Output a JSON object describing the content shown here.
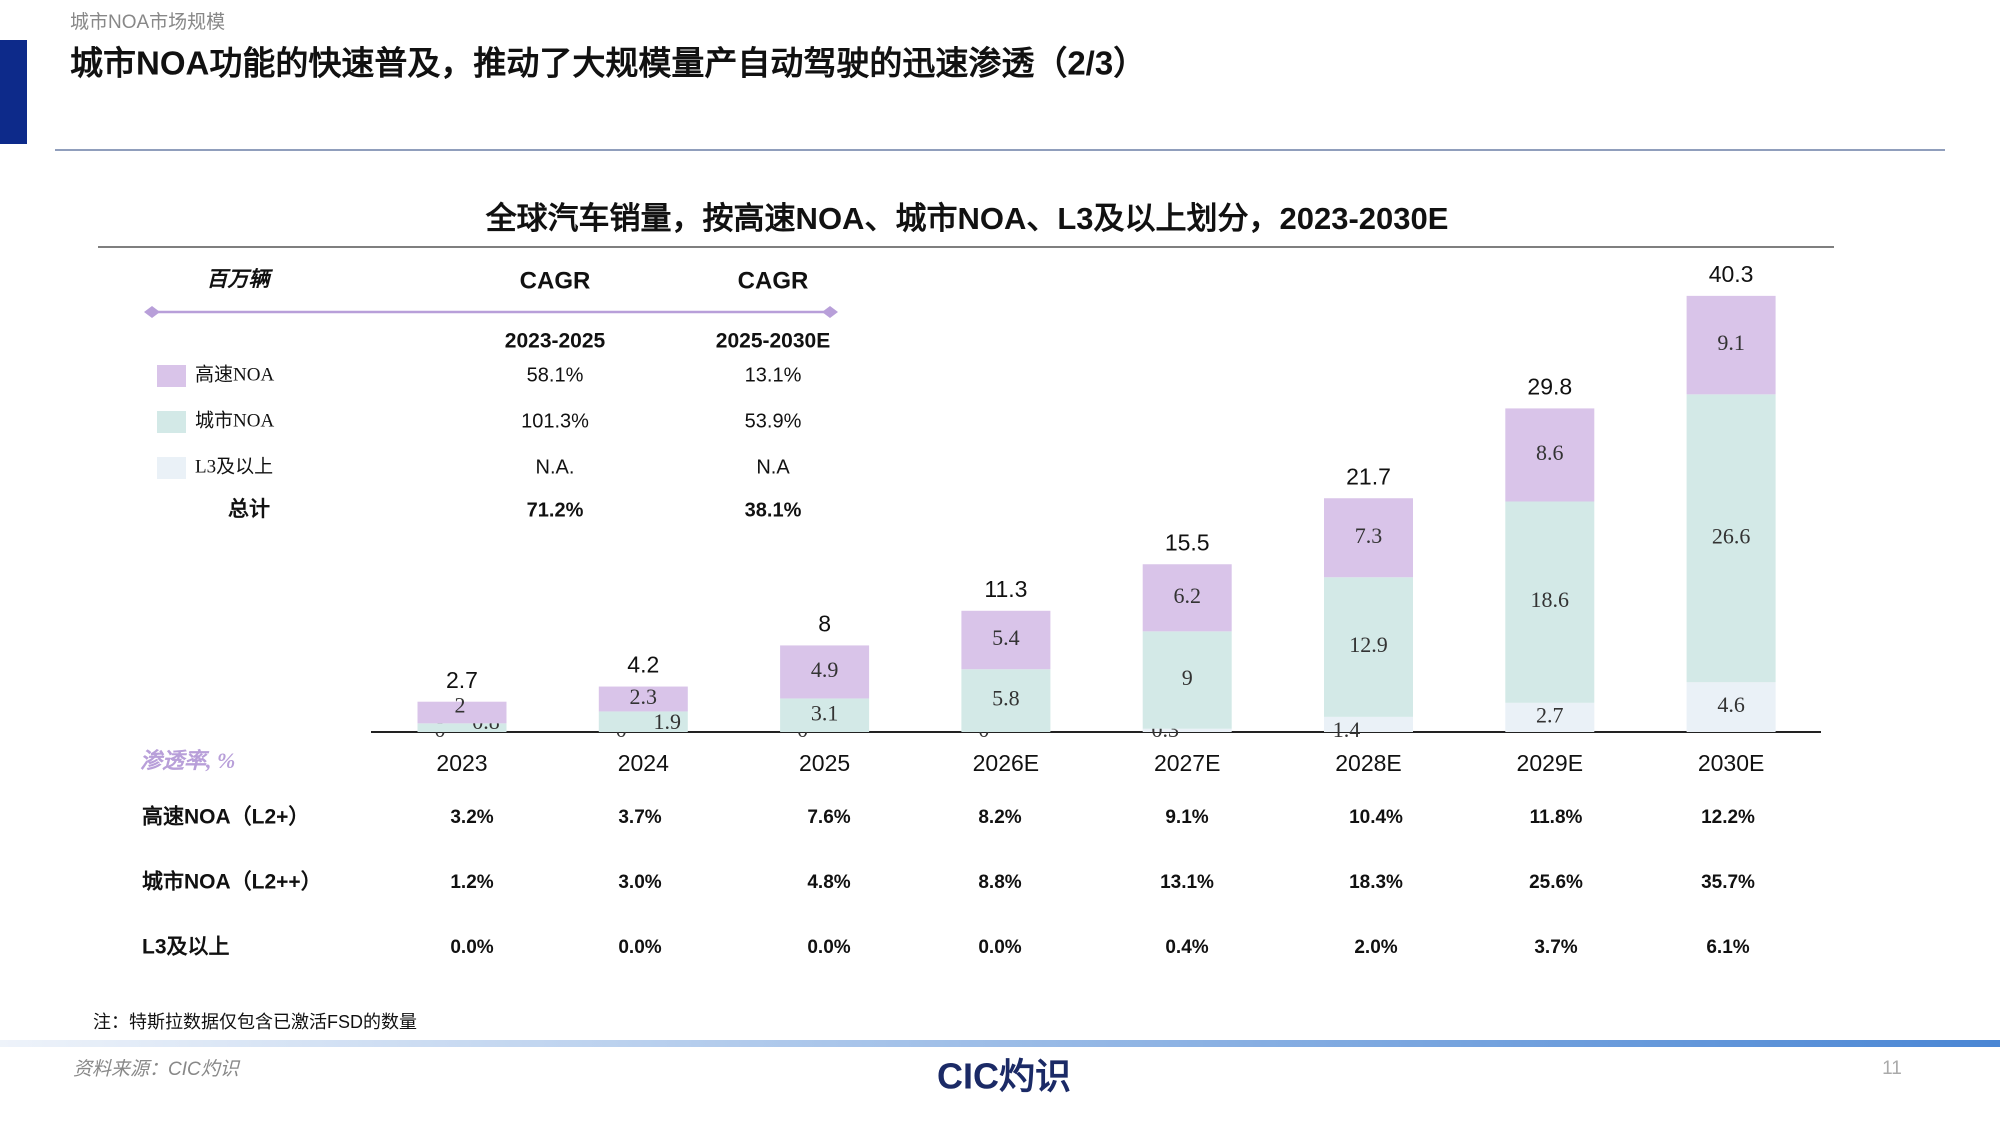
{
  "header": {
    "section": "城市NOA市场规模",
    "title": "城市NOA功能的快速普及，推动了大规模量产自动驾驶的迅速渗透（2/3）"
  },
  "chart_data": {
    "type": "stacked-bar",
    "title": "全球汽车销量，按高速NOA、城市NOA、L3及以上划分，2023-2030E",
    "unit": "百万辆",
    "categories": [
      "2023",
      "2024",
      "2025",
      "2026E",
      "2027E",
      "2028E",
      "2029E",
      "2030E"
    ],
    "series": [
      {
        "name": "高速NOA",
        "color": "#d9c4e9",
        "values": [
          2.0,
          2.3,
          4.9,
          5.4,
          6.2,
          7.3,
          8.6,
          9.1
        ]
      },
      {
        "name": "城市NOA",
        "color": "#d3e9e7",
        "values": [
          0.8,
          1.9,
          3.1,
          5.8,
          9.0,
          12.9,
          18.6,
          26.6
        ]
      },
      {
        "name": "L3及以上",
        "color": "#eaf1f7",
        "values": [
          0.0,
          0.0,
          0.0,
          0.0,
          0.3,
          1.4,
          2.7,
          4.6
        ]
      }
    ],
    "totals": [
      2.7,
      4.2,
      8.0,
      11.3,
      15.5,
      21.7,
      29.8,
      40.3
    ],
    "ylim": [
      0,
      45
    ]
  },
  "cagr_table": {
    "headers": [
      "CAGR",
      "CAGR"
    ],
    "periods": [
      "2023-2025",
      "2025-2030E"
    ],
    "rows": [
      [
        "58.1%",
        "13.1%"
      ],
      [
        "101.3%",
        "53.9%"
      ],
      [
        "N.A.",
        "N.A"
      ]
    ],
    "total_label": "总计",
    "total": [
      "71.2%",
      "38.1%"
    ]
  },
  "penetration": {
    "title": "渗透率, %",
    "rows": [
      {
        "label": "高速NOA（L2+）",
        "values": [
          "3.2%",
          "3.7%",
          "7.6%",
          "8.2%",
          "9.1%",
          "10.4%",
          "11.8%",
          "12.2%"
        ]
      },
      {
        "label": "城市NOA（L2++）",
        "values": [
          "1.2%",
          "3.0%",
          "4.8%",
          "8.8%",
          "13.1%",
          "18.3%",
          "25.6%",
          "35.7%"
        ]
      },
      {
        "label": "L3及以上",
        "values": [
          "0.0%",
          "0.0%",
          "0.0%",
          "0.0%",
          "0.4%",
          "2.0%",
          "3.7%",
          "6.1%"
        ]
      }
    ]
  },
  "footer": {
    "note": "注：特斯拉数据仅包含已激活FSD的数量",
    "source": "资料来源：CIC灼识",
    "logo": "CIC灼识",
    "page": "11"
  }
}
